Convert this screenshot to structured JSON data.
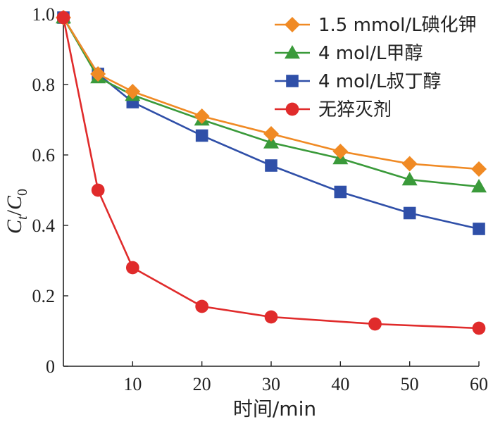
{
  "chart_data": {
    "type": "line",
    "xlabel": "时间/min",
    "ylabel": "Ct/C0",
    "ylabel_parts": {
      "c1": "C",
      "sub1": "t",
      "slash": "/",
      "c2": "C",
      "sub2": "0"
    },
    "xlim": [
      0,
      60
    ],
    "ylim": [
      0,
      1.0
    ],
    "x_ticks": [
      10,
      20,
      30,
      40,
      50,
      60
    ],
    "y_ticks": [
      0,
      0.2,
      0.4,
      0.6,
      0.8,
      1.0
    ],
    "x_tick_labels": [
      "10",
      "20",
      "30",
      "40",
      "50",
      "60"
    ],
    "y_tick_labels": [
      "0",
      "0.2",
      "0.4",
      "0.6",
      "0.8",
      "1.0"
    ],
    "grid": false,
    "legend_position": "top-right",
    "series": [
      {
        "name": "1.5 mmol/L碘化钾",
        "color": "#f08a24",
        "marker": "diamond",
        "points": [
          [
            0,
            0.99
          ],
          [
            5,
            0.83
          ],
          [
            10,
            0.78
          ],
          [
            20,
            0.71
          ],
          [
            30,
            0.66
          ],
          [
            40,
            0.61
          ],
          [
            50,
            0.575
          ],
          [
            60,
            0.56
          ]
        ]
      },
      {
        "name": "4 mol/L甲醇",
        "color": "#3a9a3a",
        "marker": "triangle",
        "points": [
          [
            0,
            0.99
          ],
          [
            5,
            0.82
          ],
          [
            10,
            0.77
          ],
          [
            20,
            0.7
          ],
          [
            30,
            0.635
          ],
          [
            40,
            0.59
          ],
          [
            50,
            0.53
          ],
          [
            60,
            0.51
          ]
        ]
      },
      {
        "name": "4 mol/L叔丁醇",
        "color": "#2f4fa8",
        "marker": "square",
        "points": [
          [
            0,
            0.99
          ],
          [
            5,
            0.83
          ],
          [
            10,
            0.75
          ],
          [
            20,
            0.655
          ],
          [
            30,
            0.57
          ],
          [
            40,
            0.495
          ],
          [
            50,
            0.435
          ],
          [
            60,
            0.39
          ]
        ]
      },
      {
        "name": "无猝灭剂",
        "color": "#e02b2b",
        "marker": "circle",
        "points": [
          [
            0,
            0.99
          ],
          [
            5,
            0.5
          ],
          [
            10,
            0.28
          ],
          [
            20,
            0.17
          ],
          [
            30,
            0.14
          ],
          [
            45,
            0.12
          ],
          [
            60,
            0.108
          ]
        ]
      }
    ]
  }
}
